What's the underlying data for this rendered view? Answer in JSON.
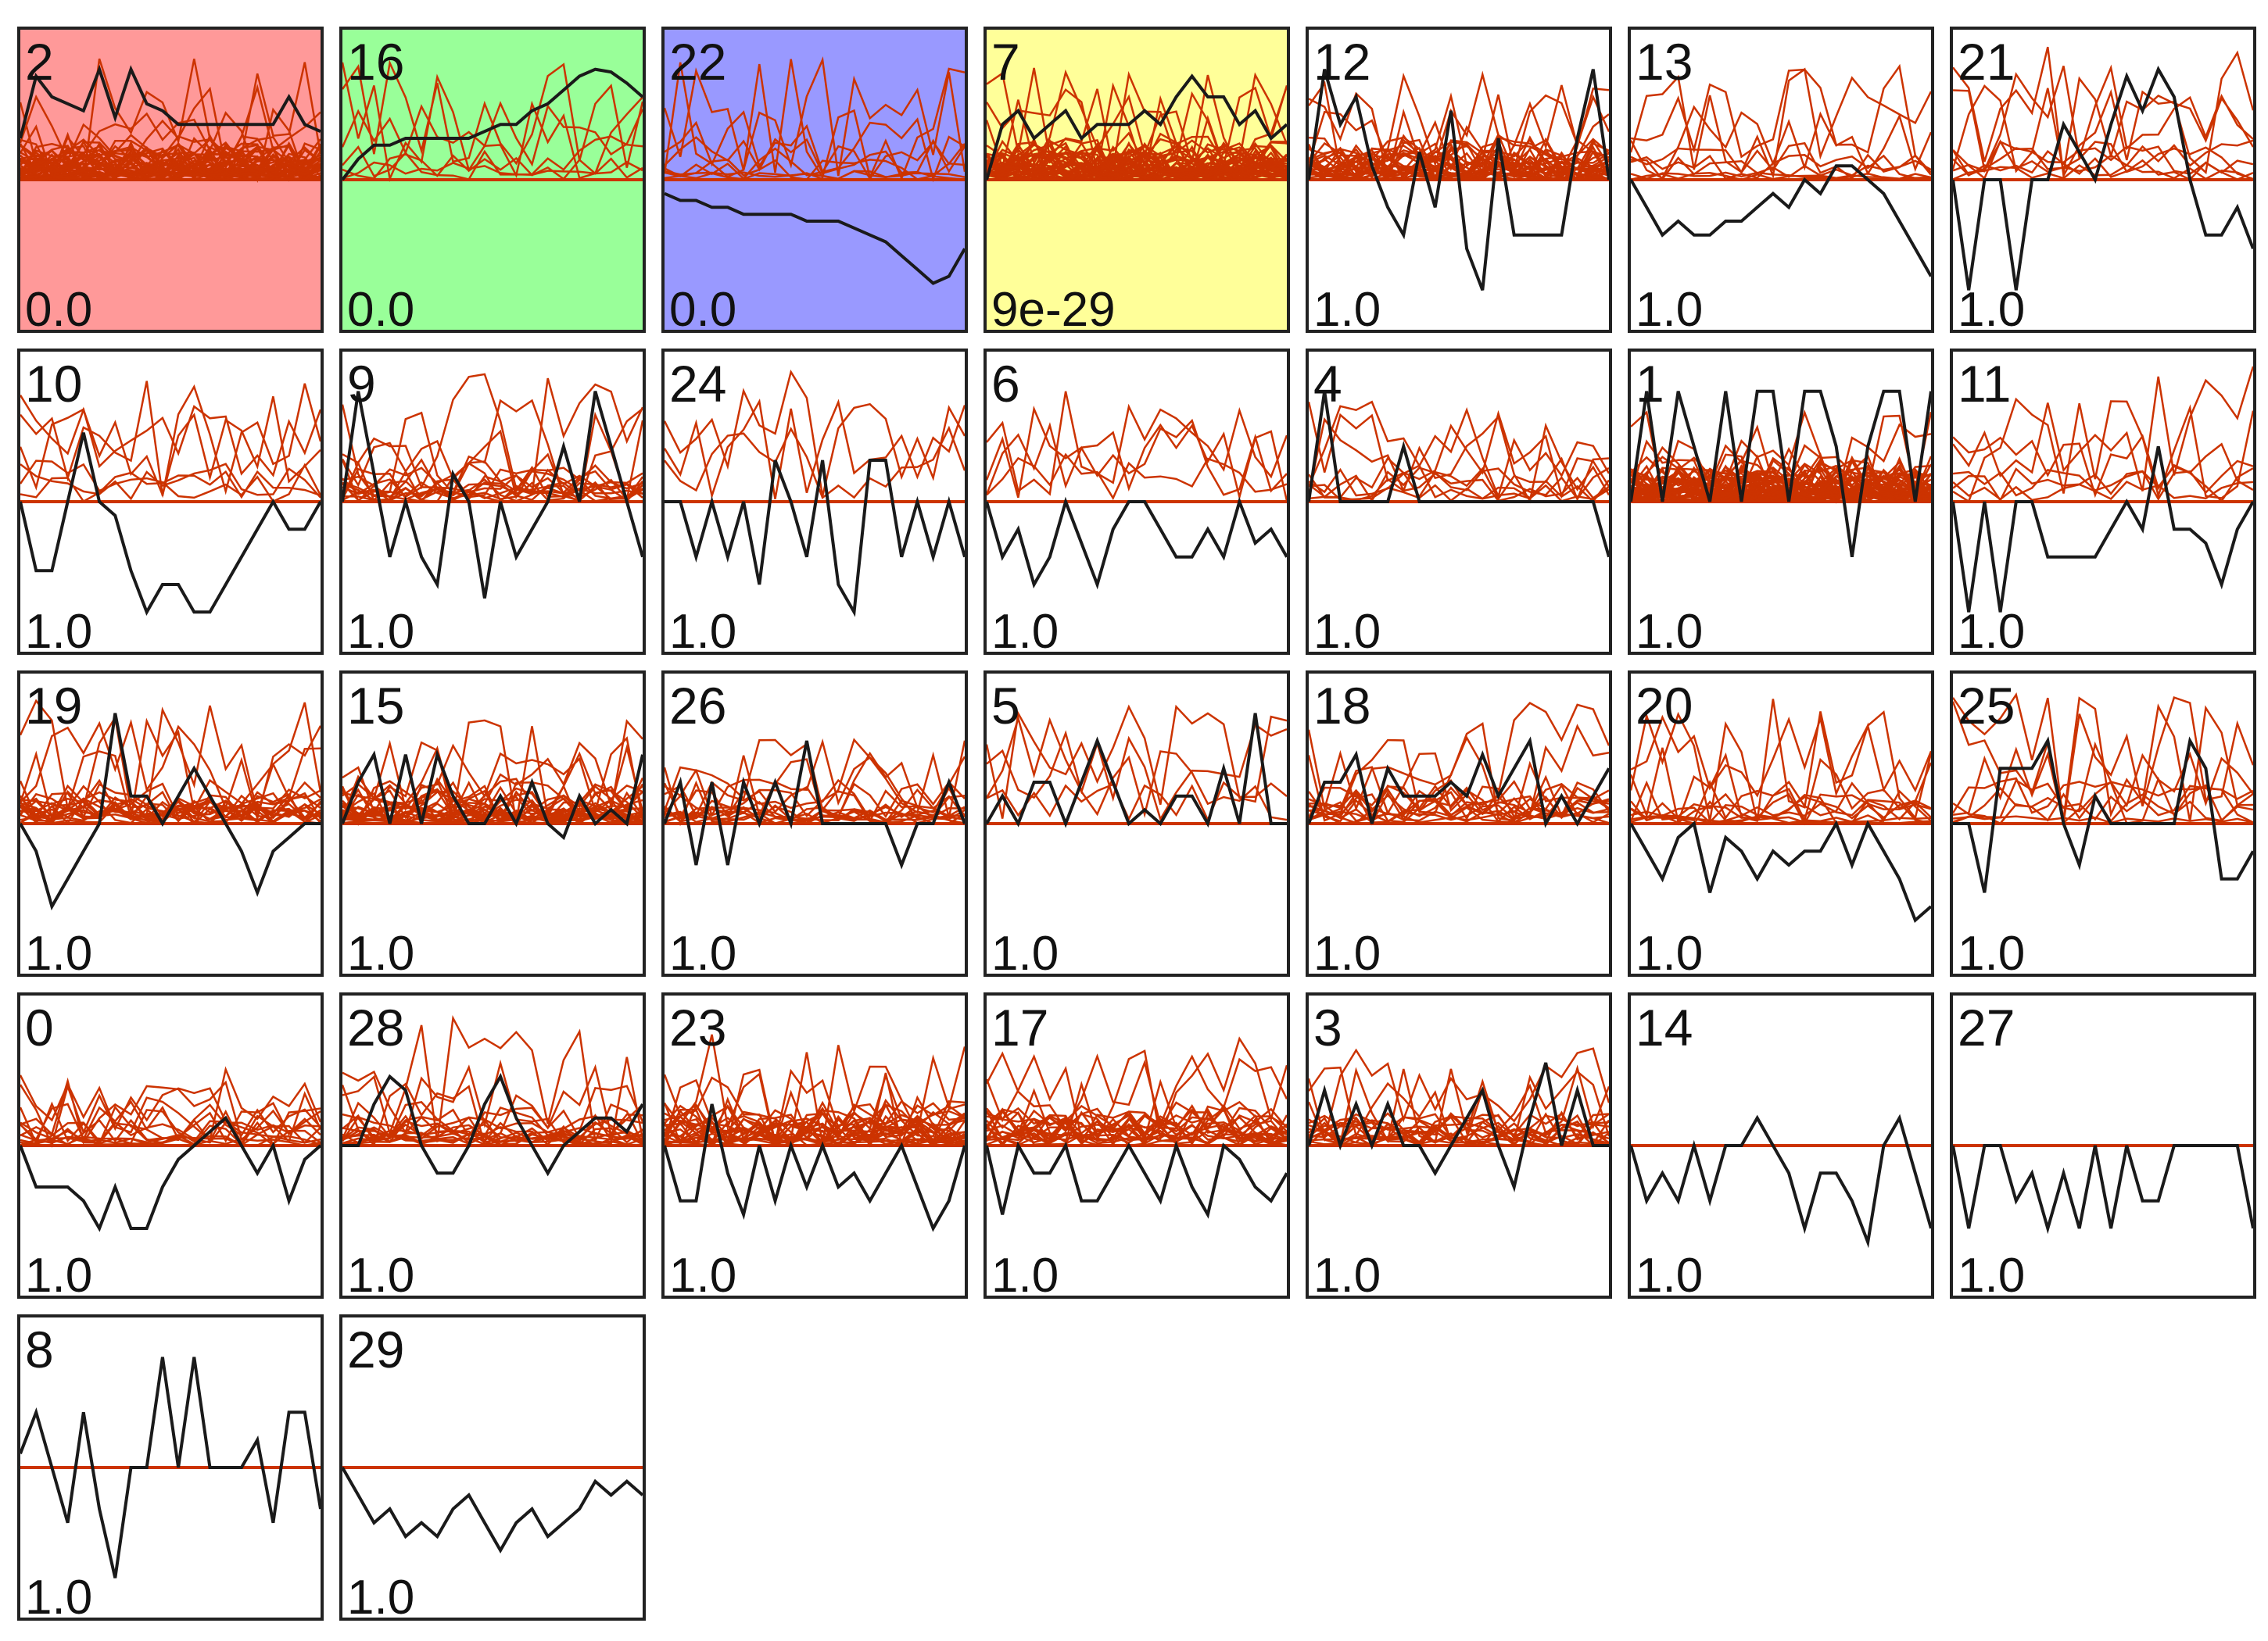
{
  "colors": {
    "profile_line": "#cc3300",
    "model_line": "#1a1a1a",
    "border": "#222222",
    "highlight": [
      "#ff9999",
      "#99ff99",
      "#9999ff",
      "#ffff99"
    ]
  },
  "chart_data": {
    "type": "line",
    "description_free": true,
    "grid": false,
    "columns": 7,
    "points_per_profile": 20,
    "panels": [
      {
        "id": "2",
        "p_value": "0.0",
        "highlight": "#ff9999",
        "profile_count": 40,
        "model": [
          0.3,
          0.75,
          0.6,
          0.55,
          0.5,
          0.8,
          0.45,
          0.8,
          0.55,
          0.5,
          0.4,
          0.4,
          0.4,
          0.4,
          0.4,
          0.4,
          0.4,
          0.6,
          0.4,
          0.35
        ]
      },
      {
        "id": "16",
        "p_value": "0.0",
        "highlight": "#99ff99",
        "profile_count": 6,
        "model": [
          0.0,
          0.15,
          0.25,
          0.25,
          0.3,
          0.3,
          0.3,
          0.3,
          0.3,
          0.35,
          0.4,
          0.4,
          0.5,
          0.55,
          0.65,
          0.75,
          0.8,
          0.78,
          0.7,
          0.6
        ]
      },
      {
        "id": "22",
        "p_value": "0.0",
        "highlight": "#9999ff",
        "profile_count": 8,
        "model": [
          -0.1,
          -0.15,
          -0.15,
          -0.2,
          -0.2,
          -0.25,
          -0.25,
          -0.25,
          -0.25,
          -0.3,
          -0.3,
          -0.3,
          -0.35,
          -0.4,
          -0.45,
          -0.55,
          -0.65,
          -0.75,
          -0.7,
          -0.5
        ]
      },
      {
        "id": "7",
        "p_value": "9e-29",
        "highlight": "#ffff99",
        "profile_count": 40,
        "model": [
          0.0,
          0.4,
          0.5,
          0.3,
          0.4,
          0.5,
          0.3,
          0.4,
          0.4,
          0.4,
          0.5,
          0.4,
          0.6,
          0.75,
          0.6,
          0.6,
          0.4,
          0.5,
          0.3,
          0.4
        ]
      },
      {
        "id": "12",
        "p_value": "1.0",
        "highlight": "",
        "profile_count": 30,
        "model": [
          0.0,
          0.8,
          0.4,
          0.6,
          0.1,
          -0.2,
          -0.4,
          0.2,
          -0.2,
          0.5,
          -0.5,
          -0.8,
          0.3,
          -0.4,
          -0.4,
          -0.4,
          -0.4,
          0.3,
          0.8,
          0.0
        ]
      },
      {
        "id": "13",
        "p_value": "1.0",
        "highlight": "",
        "profile_count": 8,
        "model": [
          0.0,
          -0.2,
          -0.4,
          -0.3,
          -0.4,
          -0.4,
          -0.3,
          -0.3,
          -0.2,
          -0.1,
          -0.2,
          0.0,
          -0.1,
          0.1,
          0.1,
          0.0,
          -0.1,
          -0.3,
          -0.5,
          -0.7
        ]
      },
      {
        "id": "21",
        "p_value": "1.0",
        "highlight": "",
        "profile_count": 8,
        "model": [
          0.0,
          -0.8,
          0.0,
          0.0,
          -0.8,
          0.0,
          0.0,
          0.4,
          0.2,
          0.0,
          0.4,
          0.75,
          0.5,
          0.8,
          0.6,
          0.0,
          -0.4,
          -0.4,
          -0.2,
          -0.5
        ]
      },
      {
        "id": "10",
        "p_value": "1.0",
        "highlight": "",
        "profile_count": 6,
        "model": [
          0.0,
          -0.5,
          -0.5,
          0.0,
          0.5,
          0.0,
          -0.1,
          -0.5,
          -0.8,
          -0.6,
          -0.6,
          -0.8,
          -0.8,
          -0.6,
          -0.4,
          -0.2,
          0.0,
          -0.2,
          -0.2,
          0.0
        ]
      },
      {
        "id": "9",
        "p_value": "1.0",
        "highlight": "",
        "profile_count": 14,
        "model": [
          0.0,
          0.8,
          0.2,
          -0.4,
          0.0,
          -0.4,
          -0.6,
          0.2,
          0.0,
          -0.7,
          0.0,
          -0.4,
          -0.2,
          0.0,
          0.4,
          0.0,
          0.8,
          0.4,
          0.0,
          -0.4
        ]
      },
      {
        "id": "24",
        "p_value": "1.0",
        "highlight": "",
        "profile_count": 3,
        "model": [
          0.0,
          0.0,
          -0.4,
          0.0,
          -0.4,
          0.0,
          -0.6,
          0.3,
          0.0,
          -0.4,
          0.3,
          -0.6,
          -0.8,
          0.3,
          0.3,
          -0.4,
          0.0,
          -0.4,
          0.0,
          -0.4
        ]
      },
      {
        "id": "6",
        "p_value": "1.0",
        "highlight": "",
        "profile_count": 4,
        "model": [
          0.0,
          -0.4,
          -0.2,
          -0.6,
          -0.4,
          0.0,
          -0.3,
          -0.6,
          -0.2,
          0.0,
          0.0,
          -0.2,
          -0.4,
          -0.4,
          -0.2,
          -0.4,
          0.0,
          -0.3,
          -0.2,
          -0.4
        ]
      },
      {
        "id": "4",
        "p_value": "1.0",
        "highlight": "",
        "profile_count": 8,
        "model": [
          0.0,
          0.8,
          0.0,
          0.0,
          0.0,
          0.0,
          0.4,
          0.0,
          0.0,
          0.0,
          0.0,
          0.0,
          0.0,
          0.0,
          0.0,
          0.0,
          0.0,
          0.0,
          0.0,
          -0.4
        ]
      },
      {
        "id": "1",
        "p_value": "1.0",
        "highlight": "",
        "profile_count": 50,
        "model": [
          0.0,
          0.8,
          0.0,
          0.8,
          0.4,
          0.0,
          0.8,
          0.0,
          0.8,
          0.8,
          0.0,
          0.8,
          0.8,
          0.4,
          -0.4,
          0.4,
          0.8,
          0.8,
          0.0,
          0.8
        ]
      },
      {
        "id": "11",
        "p_value": "1.0",
        "highlight": "",
        "profile_count": 6,
        "model": [
          0.0,
          -0.8,
          0.0,
          -0.8,
          0.0,
          0.0,
          -0.4,
          -0.4,
          -0.4,
          -0.4,
          -0.2,
          0.0,
          -0.2,
          0.4,
          -0.2,
          -0.2,
          -0.3,
          -0.6,
          -0.2,
          0.0
        ]
      },
      {
        "id": "19",
        "p_value": "1.0",
        "highlight": "",
        "profile_count": 20,
        "model": [
          0.0,
          -0.2,
          -0.6,
          -0.4,
          -0.2,
          0.0,
          0.8,
          0.2,
          0.2,
          0.0,
          0.2,
          0.4,
          0.2,
          0.0,
          -0.2,
          -0.5,
          -0.2,
          -0.1,
          0.0,
          0.0
        ]
      },
      {
        "id": "15",
        "p_value": "1.0",
        "highlight": "",
        "profile_count": 25,
        "model": [
          0.0,
          0.3,
          0.5,
          0.0,
          0.5,
          0.0,
          0.5,
          0.2,
          0.0,
          0.0,
          0.2,
          0.0,
          0.3,
          0.0,
          -0.1,
          0.2,
          0.0,
          0.1,
          0.0,
          0.5
        ]
      },
      {
        "id": "26",
        "p_value": "1.0",
        "highlight": "",
        "profile_count": 14,
        "model": [
          0.0,
          0.3,
          -0.3,
          0.3,
          -0.3,
          0.3,
          0.0,
          0.3,
          0.0,
          0.6,
          0.0,
          0.0,
          0.0,
          0.0,
          0.0,
          -0.3,
          0.0,
          0.0,
          0.3,
          0.0
        ]
      },
      {
        "id": "5",
        "p_value": "1.0",
        "highlight": "",
        "profile_count": 4,
        "model": [
          0.0,
          0.2,
          0.0,
          0.3,
          0.3,
          0.0,
          0.3,
          0.6,
          0.3,
          0.0,
          0.1,
          0.0,
          0.2,
          0.2,
          0.0,
          0.4,
          0.0,
          0.8,
          0.0,
          0.0
        ]
      },
      {
        "id": "18",
        "p_value": "1.0",
        "highlight": "",
        "profile_count": 14,
        "model": [
          0.0,
          0.3,
          0.3,
          0.5,
          0.0,
          0.4,
          0.2,
          0.2,
          0.2,
          0.3,
          0.2,
          0.5,
          0.2,
          0.4,
          0.6,
          0.0,
          0.2,
          0.0,
          0.2,
          0.4
        ]
      },
      {
        "id": "20",
        "p_value": "1.0",
        "highlight": "",
        "profile_count": 10,
        "model": [
          0.0,
          -0.2,
          -0.4,
          -0.1,
          0.0,
          -0.5,
          -0.1,
          -0.2,
          -0.4,
          -0.2,
          -0.3,
          -0.2,
          -0.2,
          0.0,
          -0.3,
          0.0,
          -0.2,
          -0.4,
          -0.7,
          -0.6
        ]
      },
      {
        "id": "25",
        "p_value": "1.0",
        "highlight": "",
        "profile_count": 8,
        "model": [
          0.0,
          0.0,
          -0.5,
          0.4,
          0.4,
          0.4,
          0.6,
          0.0,
          -0.3,
          0.2,
          0.0,
          0.0,
          0.0,
          0.0,
          0.0,
          0.6,
          0.4,
          -0.4,
          -0.4,
          -0.2
        ]
      },
      {
        "id": "0",
        "p_value": "1.0",
        "highlight": "",
        "profile_count": 12,
        "model": [
          0.0,
          -0.3,
          -0.3,
          -0.3,
          -0.4,
          -0.6,
          -0.3,
          -0.6,
          -0.6,
          -0.3,
          -0.1,
          0.0,
          0.1,
          0.2,
          0.0,
          -0.2,
          0.0,
          -0.4,
          -0.1,
          0.0
        ]
      },
      {
        "id": "28",
        "p_value": "1.0",
        "highlight": "",
        "profile_count": 16,
        "model": [
          0.0,
          0.0,
          0.3,
          0.5,
          0.4,
          0.0,
          -0.2,
          -0.2,
          0.0,
          0.3,
          0.5,
          0.2,
          0.0,
          -0.2,
          0.0,
          0.1,
          0.2,
          0.2,
          0.1,
          0.3
        ]
      },
      {
        "id": "23",
        "p_value": "1.0",
        "highlight": "",
        "profile_count": 25,
        "model": [
          0.0,
          -0.4,
          -0.4,
          0.3,
          -0.2,
          -0.5,
          0.0,
          -0.4,
          0.0,
          -0.3,
          0.0,
          -0.3,
          -0.2,
          -0.4,
          -0.2,
          0.0,
          -0.3,
          -0.6,
          -0.4,
          0.0
        ]
      },
      {
        "id": "17",
        "p_value": "1.0",
        "highlight": "",
        "profile_count": 20,
        "model": [
          0.0,
          -0.5,
          0.0,
          -0.2,
          -0.2,
          0.0,
          -0.4,
          -0.4,
          -0.2,
          0.0,
          -0.2,
          -0.4,
          0.0,
          -0.3,
          -0.5,
          0.0,
          -0.1,
          -0.3,
          -0.4,
          -0.2
        ]
      },
      {
        "id": "3",
        "p_value": "1.0",
        "highlight": "",
        "profile_count": 16,
        "model": [
          0.0,
          0.4,
          0.0,
          0.3,
          0.0,
          0.3,
          0.0,
          0.0,
          -0.2,
          0.0,
          0.2,
          0.4,
          0.0,
          -0.3,
          0.2,
          0.6,
          0.0,
          0.4,
          0.0,
          0.0
        ]
      },
      {
        "id": "14",
        "p_value": "1.0",
        "highlight": "",
        "profile_count": 0,
        "model": [
          0.0,
          -0.4,
          -0.2,
          -0.4,
          0.0,
          -0.4,
          0.0,
          0.0,
          0.2,
          0.0,
          -0.2,
          -0.6,
          -0.2,
          -0.2,
          -0.4,
          -0.7,
          0.0,
          0.2,
          -0.2,
          -0.6
        ]
      },
      {
        "id": "27",
        "p_value": "1.0",
        "highlight": "",
        "profile_count": 0,
        "model": [
          0.0,
          -0.6,
          0.0,
          0.0,
          -0.4,
          -0.2,
          -0.6,
          -0.2,
          -0.6,
          0.0,
          -0.6,
          0.0,
          -0.4,
          -0.4,
          0.0,
          0.0,
          0.0,
          0.0,
          0.0,
          -0.6
        ]
      },
      {
        "id": "8",
        "p_value": "1.0",
        "highlight": "",
        "profile_count": 0,
        "model": [
          0.1,
          0.4,
          0.0,
          -0.4,
          0.4,
          -0.3,
          -0.8,
          0.0,
          0.0,
          0.8,
          0.0,
          0.8,
          0.0,
          0.0,
          0.0,
          0.2,
          -0.4,
          0.4,
          0.4,
          -0.3
        ]
      },
      {
        "id": "29",
        "p_value": "1.0",
        "highlight": "",
        "profile_count": 0,
        "model": [
          0.0,
          -0.2,
          -0.4,
          -0.3,
          -0.5,
          -0.4,
          -0.5,
          -0.3,
          -0.2,
          -0.4,
          -0.6,
          -0.4,
          -0.3,
          -0.5,
          -0.4,
          -0.3,
          -0.1,
          -0.2,
          -0.1,
          -0.2
        ]
      }
    ]
  }
}
